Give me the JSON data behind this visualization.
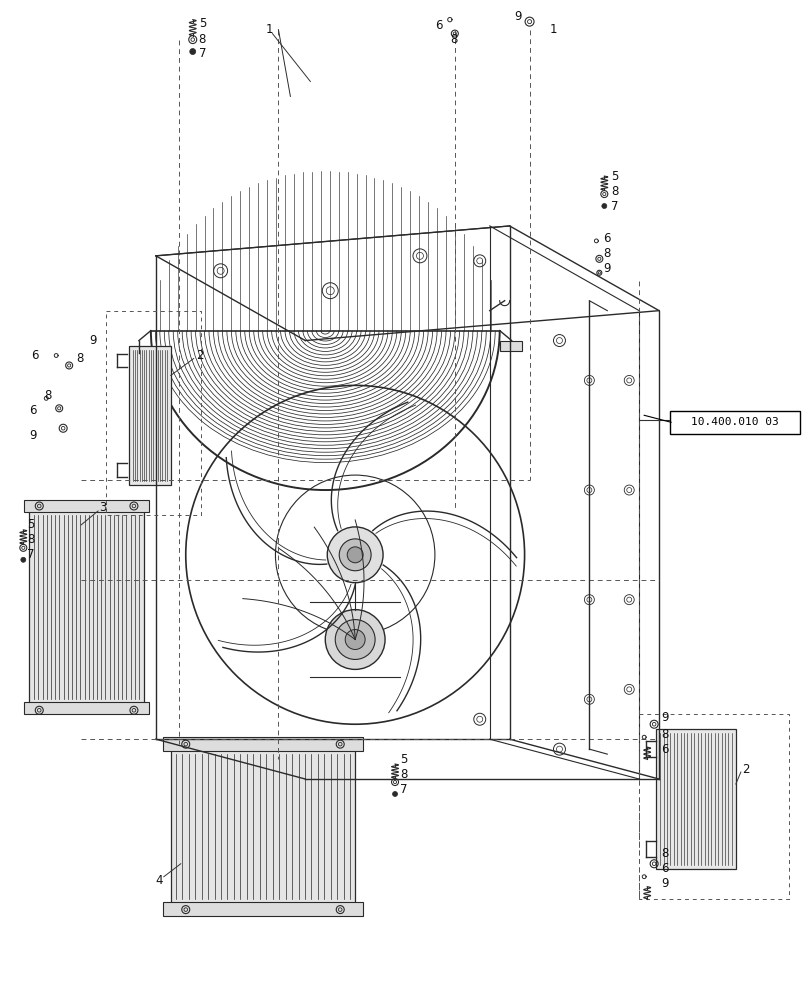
{
  "bg_color": "#ffffff",
  "figsize": [
    8.12,
    10.0
  ],
  "dpi": 100,
  "ref_label": "10.400.010 03",
  "line_color": "#2a2a2a",
  "lw_main": 1.0,
  "lw_thin": 0.6,
  "lw_dash": 0.7,
  "fs_label": 8.5,
  "label_color": "#111111"
}
